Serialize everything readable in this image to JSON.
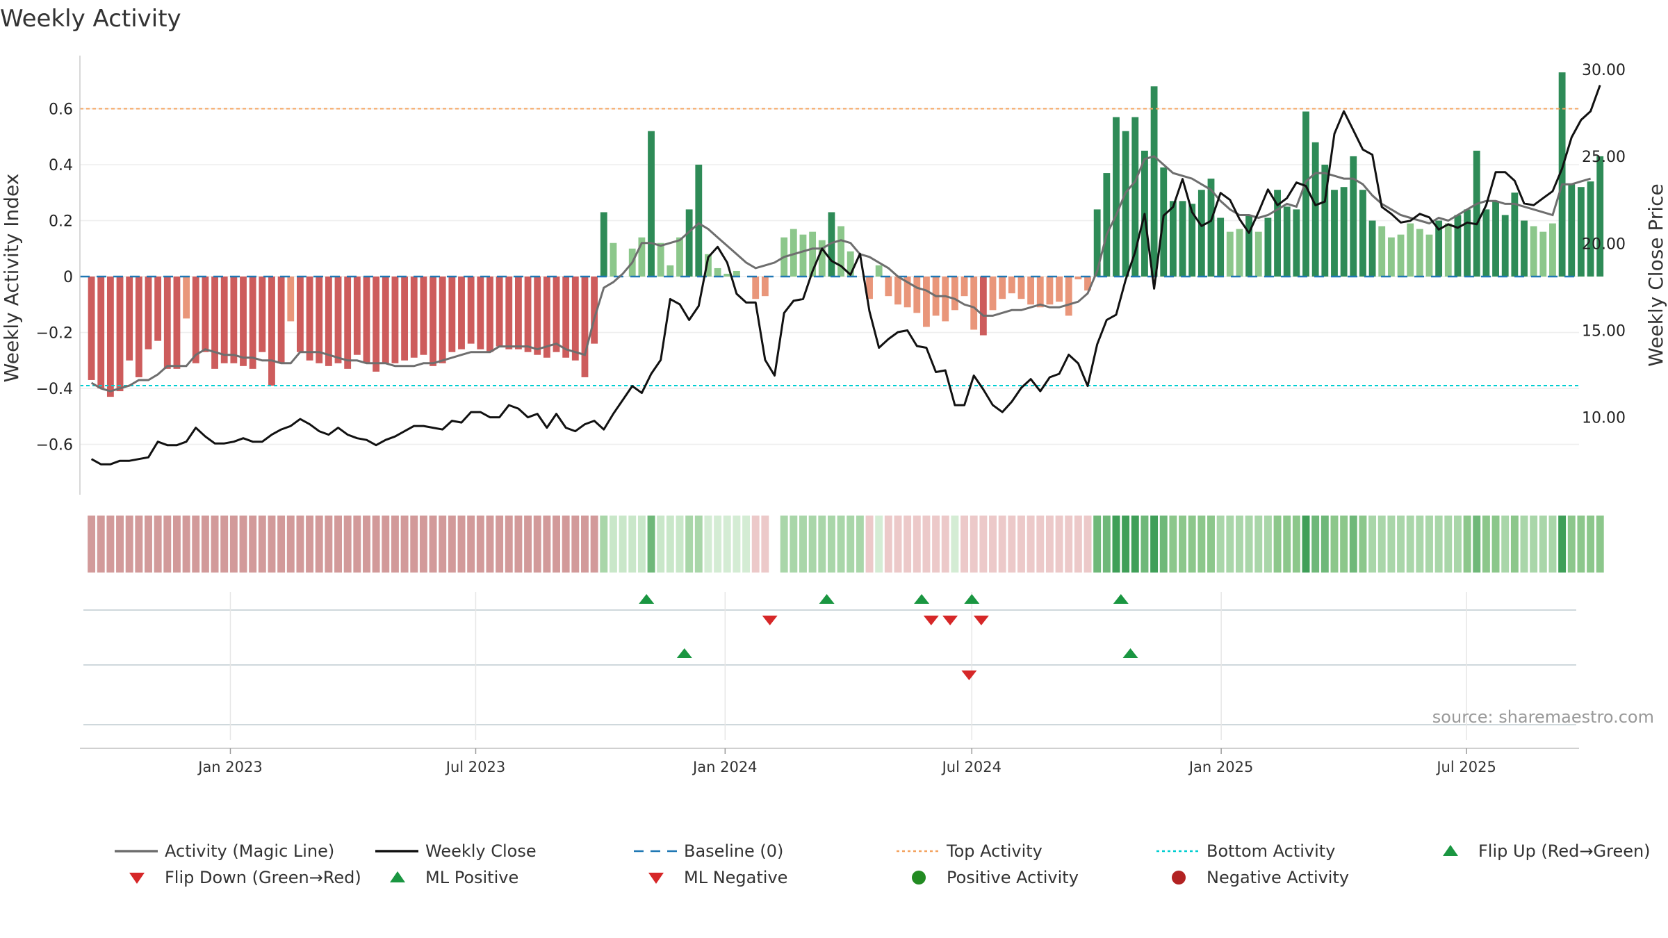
{
  "colors": {
    "strong_green": "#2e8b57",
    "light_green": "#8cc78b",
    "strong_red": "#cd5c5c",
    "light_red": "#e9967a",
    "magic_line": "#6e6e6e",
    "close_line": "#111111",
    "baseline": "#1f77b4",
    "top_line": "#f4a460",
    "bottom_line": "#00ced1",
    "marker_up": "#1a9641",
    "marker_down": "#d62728"
  },
  "chart_data": {
    "type": "bar",
    "title": "Weekly Activity",
    "ylabel": "Weekly Activity Index",
    "y2label": "Weekly Close Price",
    "ylim": [
      -0.78,
      0.79
    ],
    "y2lim": [
      5.55,
      30.8
    ],
    "yticks": [
      "0.6",
      "0.4",
      "0.2",
      "0",
      "−0.2",
      "−0.4",
      "−0.6"
    ],
    "y2ticks": [
      "30.00",
      "25.00",
      "20.00",
      "15.00",
      "10.00"
    ],
    "x_start": "2022-09-12",
    "x_end": "2025-09-22",
    "xticks": [
      {
        "label": "Jan 2023",
        "date": "2023-01-01"
      },
      {
        "label": "Jul 2023",
        "date": "2023-07-01"
      },
      {
        "label": "Jan 2024",
        "date": "2024-01-01"
      },
      {
        "label": "Jul 2024",
        "date": "2024-07-01"
      },
      {
        "label": "Jan 2025",
        "date": "2025-01-01"
      },
      {
        "label": "Jul 2025",
        "date": "2025-07-01"
      }
    ],
    "week_start": "2022-09-17",
    "activity": [
      -0.37,
      -0.4,
      -0.43,
      -0.41,
      -0.3,
      -0.36,
      -0.26,
      -0.23,
      -0.33,
      -0.33,
      -0.15,
      -0.31,
      -0.27,
      -0.33,
      -0.31,
      -0.31,
      -0.32,
      -0.33,
      -0.27,
      -0.39,
      -0.31,
      -0.16,
      -0.27,
      -0.3,
      -0.31,
      -0.32,
      -0.31,
      -0.33,
      -0.28,
      -0.31,
      -0.34,
      -0.31,
      -0.31,
      -0.3,
      -0.29,
      -0.28,
      -0.32,
      -0.31,
      -0.27,
      -0.26,
      -0.24,
      -0.26,
      -0.27,
      -0.25,
      -0.26,
      -0.26,
      -0.27,
      -0.28,
      -0.29,
      -0.27,
      -0.29,
      -0.3,
      -0.36,
      -0.24,
      0.23,
      0.12,
      0.0,
      0.1,
      0.14,
      0.52,
      0.12,
      0.04,
      0.14,
      0.24,
      0.4,
      0.08,
      0.03,
      0.01,
      0.02,
      0.0,
      -0.08,
      -0.07,
      0.0,
      0.14,
      0.17,
      0.15,
      0.16,
      0.13,
      0.23,
      0.18,
      0.09,
      0.0,
      -0.08,
      0.04,
      -0.07,
      -0.1,
      -0.11,
      -0.13,
      -0.18,
      -0.14,
      -0.16,
      -0.12,
      -0.07,
      -0.19,
      -0.21,
      -0.12,
      -0.08,
      -0.06,
      -0.08,
      -0.1,
      -0.11,
      -0.1,
      -0.09,
      -0.14,
      -0.01,
      -0.05,
      0.24,
      0.37,
      0.57,
      0.52,
      0.57,
      0.45,
      0.68,
      0.39,
      0.27,
      0.27,
      0.26,
      0.31,
      0.35,
      0.21,
      0.16,
      0.17,
      0.22,
      0.16,
      0.21,
      0.31,
      0.25,
      0.24,
      0.59,
      0.48,
      0.4,
      0.31,
      0.32,
      0.43,
      0.31,
      0.2,
      0.18,
      0.14,
      0.15,
      0.19,
      0.17,
      0.15,
      0.2,
      0.19,
      0.22,
      0.24,
      0.45,
      0.24,
      0.27,
      0.22,
      0.3,
      0.2,
      0.18,
      0.16,
      0.19,
      0.73,
      0.33,
      0.32,
      0.34,
      0.43
    ],
    "magic_line": [
      -0.38,
      -0.4,
      -0.41,
      -0.4,
      -0.39,
      -0.37,
      -0.37,
      -0.35,
      -0.32,
      -0.32,
      -0.32,
      -0.28,
      -0.26,
      -0.27,
      -0.28,
      -0.28,
      -0.29,
      -0.29,
      -0.3,
      -0.3,
      -0.31,
      -0.31,
      -0.27,
      -0.27,
      -0.27,
      -0.28,
      -0.29,
      -0.3,
      -0.3,
      -0.31,
      -0.31,
      -0.31,
      -0.32,
      -0.32,
      -0.32,
      -0.31,
      -0.31,
      -0.3,
      -0.29,
      -0.28,
      -0.27,
      -0.27,
      -0.27,
      -0.25,
      -0.25,
      -0.25,
      -0.25,
      -0.26,
      -0.25,
      -0.24,
      -0.26,
      -0.27,
      -0.28,
      -0.15,
      -0.04,
      -0.02,
      0.01,
      0.05,
      0.12,
      0.12,
      0.11,
      0.12,
      0.13,
      0.16,
      0.19,
      0.17,
      0.14,
      0.11,
      0.08,
      0.05,
      0.03,
      0.04,
      0.05,
      0.07,
      0.08,
      0.09,
      0.1,
      0.1,
      0.12,
      0.13,
      0.12,
      0.08,
      0.07,
      0.05,
      0.03,
      0.0,
      -0.02,
      -0.04,
      -0.05,
      -0.07,
      -0.07,
      -0.08,
      -0.1,
      -0.11,
      -0.14,
      -0.14,
      -0.13,
      -0.12,
      -0.12,
      -0.11,
      -0.1,
      -0.11,
      -0.11,
      -0.1,
      -0.09,
      -0.06,
      0.02,
      0.15,
      0.22,
      0.3,
      0.34,
      0.42,
      0.43,
      0.4,
      0.37,
      0.36,
      0.35,
      0.33,
      0.31,
      0.27,
      0.24,
      0.22,
      0.22,
      0.21,
      0.22,
      0.24,
      0.26,
      0.25,
      0.34,
      0.37,
      0.37,
      0.36,
      0.35,
      0.35,
      0.33,
      0.29,
      0.26,
      0.24,
      0.22,
      0.21,
      0.2,
      0.19,
      0.21,
      0.2,
      0.22,
      0.24,
      0.26,
      0.27,
      0.27,
      0.26,
      0.26,
      0.25,
      0.24,
      0.23,
      0.22,
      0.33,
      0.33,
      0.34,
      0.35
    ],
    "close": [
      7.6,
      7.3,
      7.3,
      7.5,
      7.5,
      7.6,
      7.7,
      8.6,
      8.4,
      8.4,
      8.6,
      9.4,
      8.9,
      8.5,
      8.5,
      8.6,
      8.8,
      8.6,
      8.6,
      9.0,
      9.3,
      9.5,
      9.9,
      9.6,
      9.2,
      9.0,
      9.4,
      9.0,
      8.8,
      8.7,
      8.4,
      8.7,
      8.9,
      9.2,
      9.5,
      9.5,
      9.4,
      9.3,
      9.8,
      9.7,
      10.3,
      10.3,
      10.0,
      10.0,
      10.7,
      10.5,
      10.0,
      10.2,
      9.4,
      10.2,
      9.4,
      9.2,
      9.6,
      9.8,
      9.3,
      10.2,
      11.0,
      11.8,
      11.4,
      12.5,
      13.3,
      16.8,
      16.5,
      15.6,
      16.4,
      19.2,
      19.8,
      18.9,
      17.1,
      16.6,
      16.6,
      13.3,
      12.4,
      16.0,
      16.7,
      16.8,
      18.4,
      19.7,
      19.0,
      18.7,
      18.2,
      19.4,
      16.1,
      14.0,
      14.5,
      14.9,
      15.0,
      14.1,
      14.0,
      12.6,
      12.7,
      10.7,
      10.7,
      12.4,
      11.6,
      10.7,
      10.3,
      10.9,
      11.7,
      12.2,
      11.5,
      12.3,
      12.5,
      13.6,
      13.1,
      11.8,
      14.2,
      15.6,
      15.9,
      17.9,
      19.5,
      21.7,
      17.4,
      21.6,
      22.1,
      23.7,
      21.8,
      21.0,
      21.3,
      22.9,
      22.5,
      21.4,
      20.6,
      21.8,
      23.1,
      22.2,
      22.6,
      23.5,
      23.3,
      22.2,
      22.4,
      26.3,
      27.6,
      26.5,
      25.4,
      25.1,
      22.1,
      21.7,
      21.2,
      21.3,
      21.7,
      21.5,
      20.8,
      21.1,
      20.9,
      21.2,
      21.1,
      22.2,
      24.1,
      24.1,
      23.6,
      22.3,
      22.2,
      22.6,
      23.0,
      24.3,
      26.1,
      27.1,
      27.6,
      29.1
    ],
    "strip_colors": [
      "#d29a9a",
      "#d29a9a",
      "#d29a9a",
      "#d29a9a",
      "#d29a9a",
      "#d29a9a",
      "#d29a9a",
      "#d29a9a",
      "#d29a9a",
      "#d29a9a",
      "#d29a9a",
      "#d29a9a",
      "#d29a9a",
      "#d29a9a",
      "#d29a9a",
      "#d29a9a",
      "#d29a9a",
      "#d29a9a",
      "#d29a9a",
      "#d29a9a",
      "#d29a9a",
      "#d29a9a",
      "#d29a9a",
      "#d29a9a",
      "#d29a9a",
      "#d29a9a",
      "#d29a9a",
      "#d29a9a",
      "#d29a9a",
      "#d29a9a",
      "#d29a9a",
      "#d29a9a",
      "#d29a9a",
      "#d29a9a",
      "#d29a9a",
      "#d29a9a",
      "#d29a9a",
      "#d29a9a",
      "#d29a9a",
      "#d29a9a",
      "#d29a9a",
      "#d29a9a",
      "#d29a9a",
      "#d29a9a",
      "#d29a9a",
      "#d29a9a",
      "#d29a9a",
      "#d29a9a",
      "#d29a9a",
      "#d29a9a",
      "#d29a9a",
      "#d29a9a",
      "#d29a9a",
      "#d29a9a",
      "#a9d6a9",
      "#c9e7c9",
      "#c9e7c9",
      "#c9e7c9",
      "#c9e7c9",
      "#6fb879",
      "#c9e7c9",
      "#c9e7c9",
      "#c9e7c9",
      "#a9d6a9",
      "#a9d6a9",
      "#d4ecd4",
      "#d4ecd4",
      "#d4ecd4",
      "#d4ecd4",
      "#d4ecd4",
      "#ecc9c9",
      "#ecc9c9",
      "#ffffff",
      "#a9d6a9",
      "#a9d6a9",
      "#a9d6a9",
      "#a9d6a9",
      "#a9d6a9",
      "#a9d6a9",
      "#a9d6a9",
      "#a9d6a9",
      "#a9d6a9",
      "#ecc9c9",
      "#d4ecd4",
      "#ecc9c9",
      "#ecc9c9",
      "#ecc9c9",
      "#ecc9c9",
      "#ecc9c9",
      "#ecc9c9",
      "#ecc9c9",
      "#d4ecd4",
      "#ecc9c9",
      "#ecc9c9",
      "#ecc9c9",
      "#ecc9c9",
      "#ecc9c9",
      "#ecc9c9",
      "#ecc9c9",
      "#ecc9c9",
      "#ecc9c9",
      "#ecc9c9",
      "#ecc9c9",
      "#ecc9c9",
      "#ecc9c9",
      "#ecc9c9",
      "#6fb879",
      "#6fb879",
      "#3f9f58",
      "#3f9f58",
      "#3f9f58",
      "#6fb879",
      "#3f9f58",
      "#6fb879",
      "#8cc78b",
      "#8cc78b",
      "#8cc78b",
      "#8cc78b",
      "#8cc78b",
      "#a9d6a9",
      "#a9d6a9",
      "#a9d6a9",
      "#a9d6a9",
      "#a9d6a9",
      "#a9d6a9",
      "#8cc78b",
      "#8cc78b",
      "#8cc78b",
      "#3f9f58",
      "#6fb879",
      "#6fb879",
      "#8cc78b",
      "#8cc78b",
      "#6fb879",
      "#8cc78b",
      "#a9d6a9",
      "#a9d6a9",
      "#a9d6a9",
      "#a9d6a9",
      "#a9d6a9",
      "#a9d6a9",
      "#a9d6a9",
      "#a9d6a9",
      "#a9d6a9",
      "#a9d6a9",
      "#8cc78b",
      "#6fb879",
      "#8cc78b",
      "#8cc78b",
      "#a9d6a9",
      "#8cc78b",
      "#a9d6a9",
      "#a9d6a9",
      "#a9d6a9",
      "#a9d6a9",
      "#3f9f58",
      "#8cc78b",
      "#8cc78b",
      "#8cc78b",
      "#8cc78b"
    ],
    "flip_up": [
      "2023-11-04",
      "2024-03-16",
      "2024-05-25",
      "2024-07-01",
      "2024-10-19"
    ],
    "flip_down": [
      "2024-02-03",
      "2024-06-01",
      "2024-06-15",
      "2024-07-08"
    ],
    "ml_positive": [
      "2023-12-02",
      "2024-10-26"
    ],
    "ml_negative": [
      "2024-06-29"
    ],
    "top_activity": 0.6,
    "bottom_activity": -0.39,
    "baseline": 0
  },
  "legend": [
    {
      "label": "Activity (Magic Line)",
      "kind": "line-solid",
      "color": "#6e6e6e"
    },
    {
      "label": "Weekly Close",
      "kind": "line-solid",
      "color": "#111111"
    },
    {
      "label": "Baseline (0)",
      "kind": "line-dashed",
      "color": "#1f77b4"
    },
    {
      "label": "Top Activity",
      "kind": "line-dotted",
      "color": "#f4a460"
    },
    {
      "label": "Bottom Activity",
      "kind": "line-dotted",
      "color": "#00ced1"
    },
    {
      "label": "Flip Up (Red→Green)",
      "kind": "triangle-up",
      "color": "#1a9641"
    },
    {
      "label": "Flip Down (Green→Red)",
      "kind": "triangle-down",
      "color": "#d62728"
    },
    {
      "label": "ML Positive",
      "kind": "triangle-up",
      "color": "#1a9641"
    },
    {
      "label": "ML Negative",
      "kind": "triangle-down",
      "color": "#d62728"
    },
    {
      "label": "Positive Activity",
      "kind": "circle",
      "color": "#228b22"
    },
    {
      "label": "Negative Activity",
      "kind": "circle",
      "color": "#b22222"
    }
  ],
  "source": "source: sharemaestro.com"
}
